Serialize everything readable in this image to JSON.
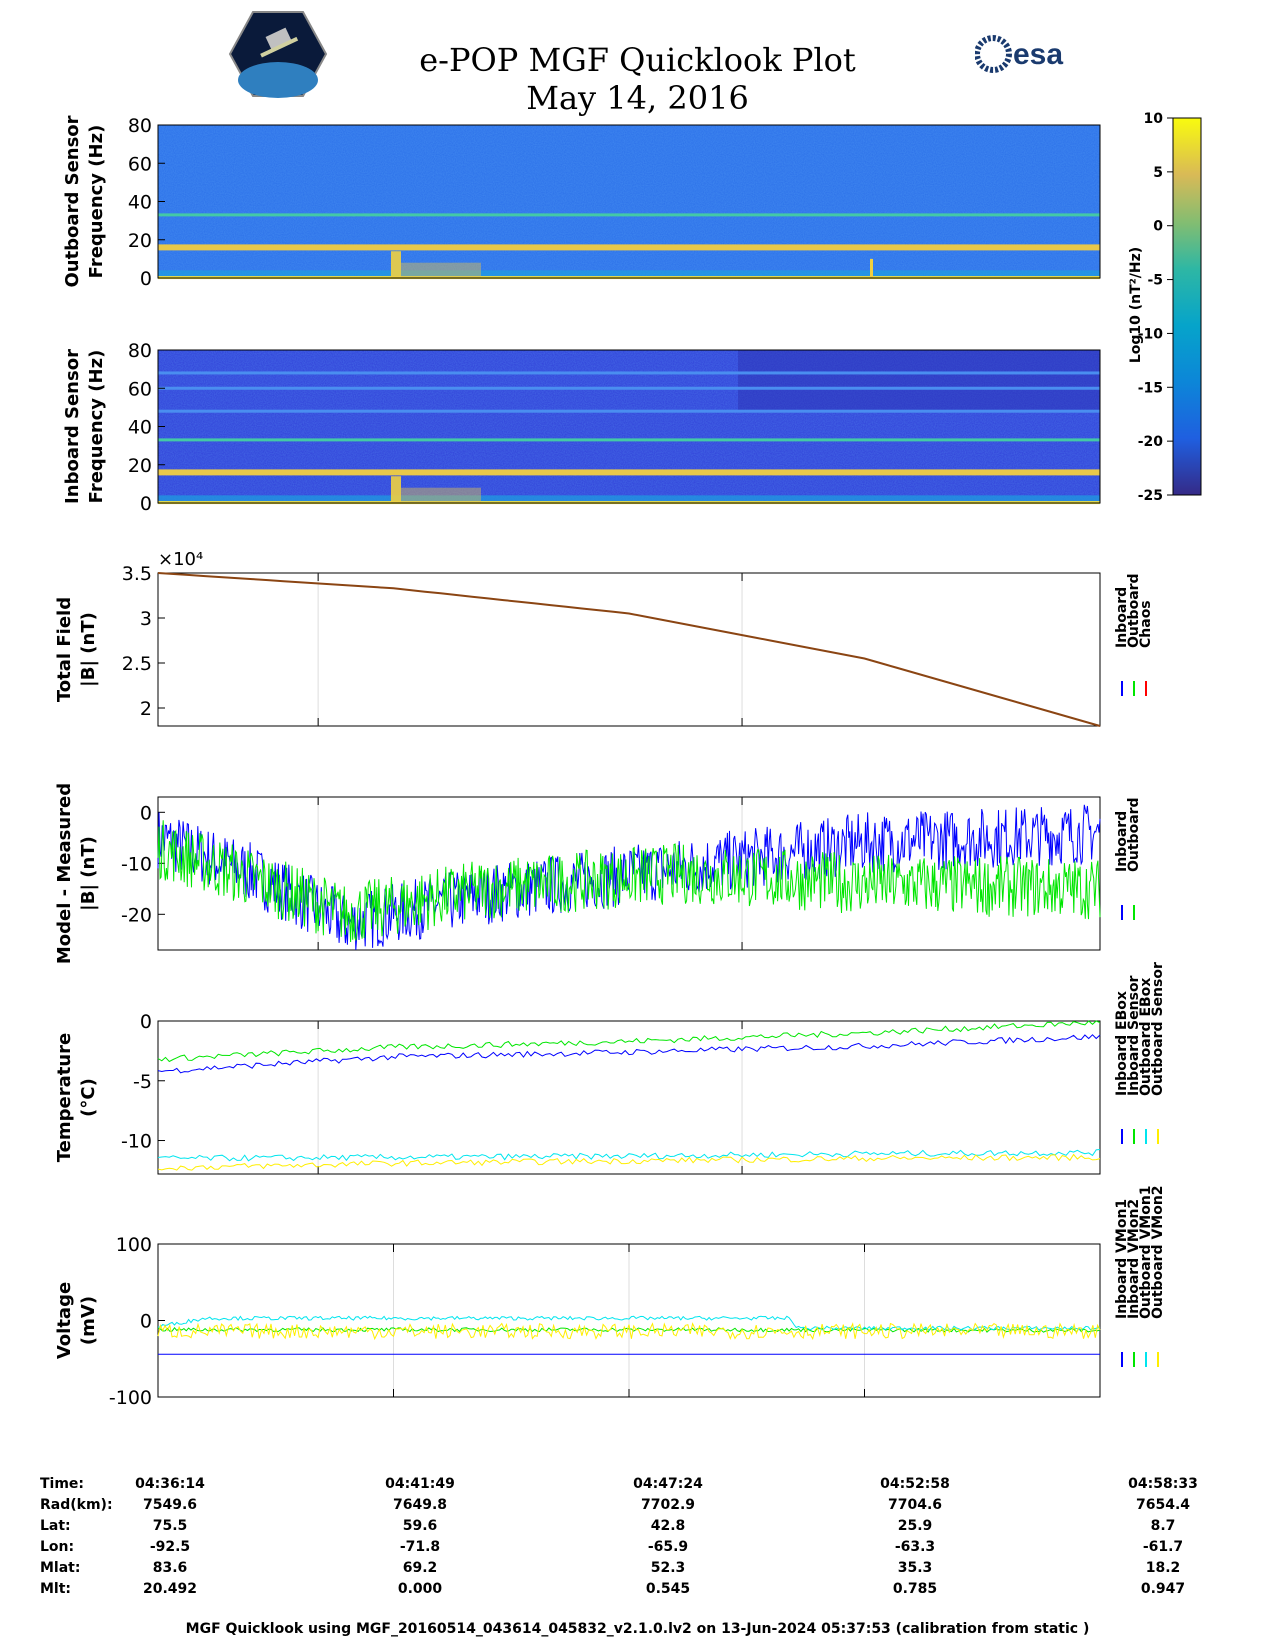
{
  "title": "e-POP MGF Quicklook Plot",
  "subtitle": "May 14, 2016",
  "logos": {
    "left": "cassiope-satellite-logo",
    "right_text": "esa"
  },
  "colors": {
    "inboard": "#0000ff",
    "outboard": "#00e600",
    "chaos": "#ff0000",
    "cyan": "#00e5ee",
    "yellow": "#ffee00",
    "model_line": "#8b4513"
  },
  "colorbar": {
    "label": "Log10 (nT²/Hz)",
    "ticks": [
      "10",
      "5",
      "0",
      "-5",
      "-10",
      "-15",
      "-20",
      "-25"
    ],
    "range": [
      -25,
      10
    ]
  },
  "chart_data": [
    {
      "type": "heatmap",
      "name": "outboard-spectrogram",
      "ylabel": [
        "Outboard Sensor",
        "Frequency (Hz)"
      ],
      "yticks": [
        "80",
        "60",
        "40",
        "20",
        "0"
      ],
      "ylim": [
        0,
        80
      ],
      "bands_hz": [
        16,
        33
      ]
    },
    {
      "type": "heatmap",
      "name": "inboard-spectrogram",
      "ylabel": [
        "Inboard Sensor",
        "Frequency (Hz)"
      ],
      "yticks": [
        "80",
        "60",
        "40",
        "20",
        "0"
      ],
      "ylim": [
        0,
        80
      ],
      "bands_hz": [
        16,
        33,
        48,
        60,
        68
      ]
    },
    {
      "type": "line",
      "name": "total-field",
      "ylabel": [
        "Total Field",
        "|B| (nT)"
      ],
      "multiplier": "×10⁴",
      "yticks": [
        "3.5",
        "3",
        "2.5",
        "2"
      ],
      "ylim": [
        1.8,
        3.5
      ],
      "legend": [
        "Inboard",
        "Outboard",
        "Chaos"
      ],
      "series": [
        {
          "name": "Chaos",
          "x": [
            0,
            0.25,
            0.5,
            0.75,
            1.0
          ],
          "values": [
            3.5,
            3.33,
            3.05,
            2.55,
            1.8
          ]
        }
      ]
    },
    {
      "type": "line",
      "name": "model-minus-measured",
      "ylabel": [
        "Model - Measured",
        "|B| (nT)"
      ],
      "yticks": [
        "0",
        "-10",
        "-20"
      ],
      "ylim": [
        -27,
        3
      ],
      "legend": [
        "Inboard",
        "Outboard"
      ],
      "series": [
        {
          "name": "Inboard",
          "x": [
            0,
            0.1,
            0.2,
            0.35,
            0.55,
            0.75,
            1.0
          ],
          "values": [
            -5,
            -12,
            -22,
            -16,
            -11,
            -6,
            -4
          ]
        },
        {
          "name": "Outboard",
          "x": [
            0,
            0.1,
            0.2,
            0.35,
            0.55,
            0.75,
            1.0
          ],
          "values": [
            -7,
            -13,
            -20,
            -15,
            -12,
            -14,
            -15
          ]
        }
      ]
    },
    {
      "type": "line",
      "name": "temperature",
      "ylabel": [
        "Temperature",
        "(°C)"
      ],
      "yticks": [
        "0",
        "-5",
        "-10"
      ],
      "ylim": [
        -12.8,
        0
      ],
      "legend": [
        "Inboard EBox",
        "Inboard Sensor",
        "Outboard EBox",
        "Outboard Sensor"
      ],
      "series": [
        {
          "name": "Inboard EBox",
          "x": [
            0,
            0.25,
            0.5,
            0.75,
            1.0
          ],
          "values": [
            -4.2,
            -3.0,
            -2.6,
            -2.1,
            -1.3
          ]
        },
        {
          "name": "Inboard Sensor",
          "x": [
            0,
            0.25,
            0.5,
            0.75,
            1.0
          ],
          "values": [
            -3.2,
            -2.2,
            -1.7,
            -1.0,
            -0.1
          ]
        },
        {
          "name": "Outboard EBox",
          "x": [
            0,
            0.25,
            0.5,
            0.75,
            1.0
          ],
          "values": [
            -11.5,
            -11.4,
            -11.3,
            -11.1,
            -11.0
          ]
        },
        {
          "name": "Outboard Sensor",
          "x": [
            0,
            0.25,
            0.5,
            0.75,
            1.0
          ],
          "values": [
            -12.3,
            -11.9,
            -11.7,
            -11.5,
            -11.4
          ]
        }
      ]
    },
    {
      "type": "line",
      "name": "voltage",
      "ylabel": [
        "Voltage",
        "(mV)"
      ],
      "yticks": [
        "100",
        "0",
        "-100"
      ],
      "ylim": [
        -100,
        100
      ],
      "legend": [
        "Inboard VMon1",
        "Inboard VMon2",
        "Outboard VMon1",
        "Outboard VMon2"
      ],
      "series": [
        {
          "name": "Inboard VMon1",
          "x": [
            0,
            1.0
          ],
          "values": [
            -44,
            -44
          ]
        },
        {
          "name": "Inboard VMon2",
          "x": [
            0,
            0.6,
            1.0
          ],
          "values": [
            -12,
            -12,
            -13
          ]
        },
        {
          "name": "Outboard VMon1",
          "x": [
            0,
            0.05,
            0.67,
            0.68,
            1.0
          ],
          "values": [
            -8,
            3,
            3,
            -10,
            -10
          ]
        },
        {
          "name": "Outboard VMon2",
          "x": [
            0,
            1.0
          ],
          "values": [
            -14,
            -14
          ]
        }
      ]
    }
  ],
  "table": {
    "labels": [
      "Time:",
      "Rad(km):",
      "Lat:",
      "Lon:",
      "Mlat:",
      "Mlt:"
    ],
    "columns": [
      [
        "04:36:14",
        "7549.6",
        "75.5",
        "-92.5",
        "83.6",
        "20.492"
      ],
      [
        "04:41:49",
        "7649.8",
        "59.6",
        "-71.8",
        "69.2",
        "0.000"
      ],
      [
        "04:47:24",
        "7702.9",
        "42.8",
        "-65.9",
        "52.3",
        "0.545"
      ],
      [
        "04:52:58",
        "7704.6",
        "25.9",
        "-63.3",
        "35.3",
        "0.785"
      ],
      [
        "04:58:33",
        "7654.4",
        "8.7",
        "-61.7",
        "18.2",
        "0.947"
      ]
    ]
  },
  "footer": "MGF Quicklook using MGF_20160514_043614_045832_v2.1.0.lv2 on 13-Jun-2024 05:37:53 (calibration from static )"
}
